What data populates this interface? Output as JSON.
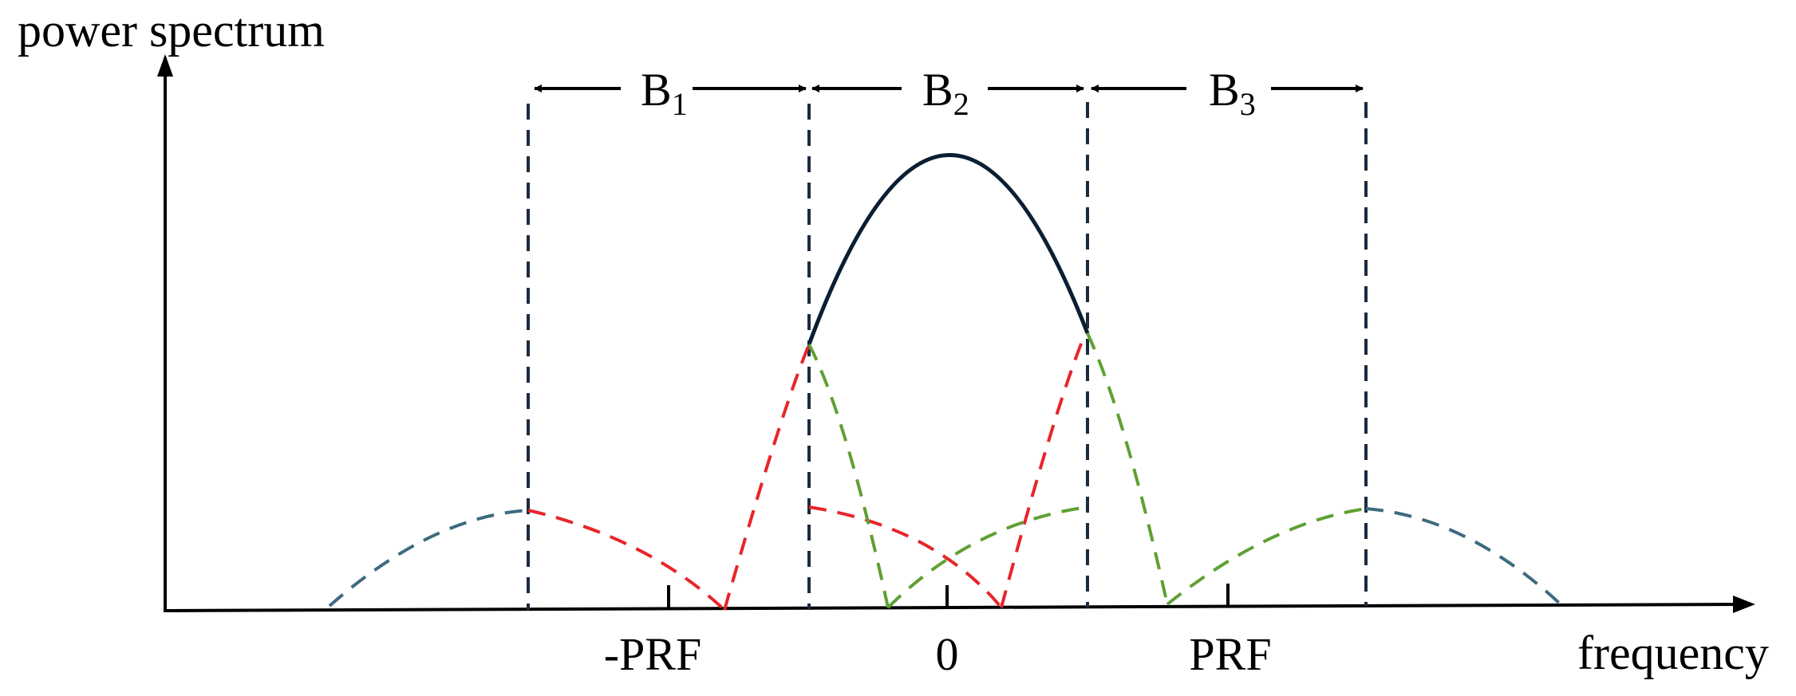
{
  "axes": {
    "y_label": "power spectrum",
    "x_label": "frequency"
  },
  "ticks": {
    "neg_prf": "-PRF",
    "zero": "0",
    "prf": "PRF"
  },
  "bands": [
    {
      "base": "B",
      "sub": "1"
    },
    {
      "base": "B",
      "sub": "2"
    },
    {
      "base": "B",
      "sub": "3"
    }
  ],
  "colors": {
    "axis": "#000000",
    "main_lobe": "#0b1f33",
    "divider": "#1b2b40",
    "red": "#e8252a",
    "green": "#5fa033",
    "blue": "#3d6b80"
  }
}
